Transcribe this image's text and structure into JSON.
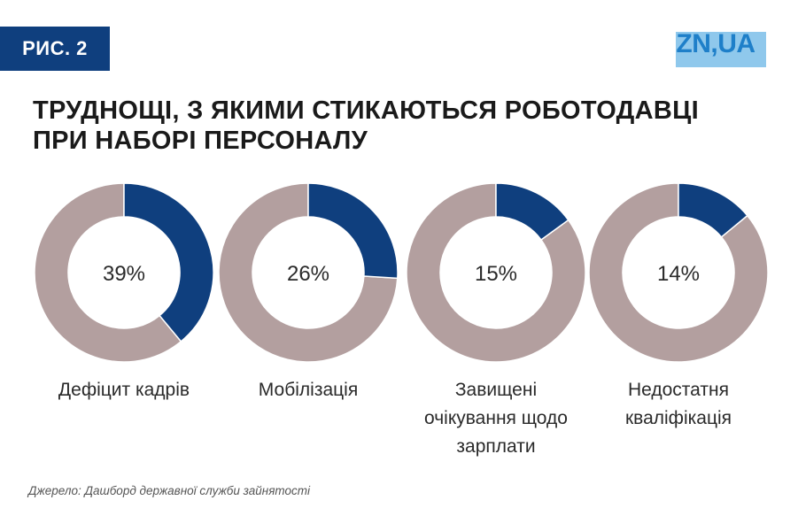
{
  "header": {
    "figure_label": "РИС. 2",
    "logo_text": "ZN,UA"
  },
  "chart_data": {
    "type": "pie",
    "variant": "donut",
    "title_lines": [
      "ТРУДНОЩІ, З ЯКИМИ СТИКАЮТЬСЯ РОБОТОДАВЦІ",
      "ПРИ НАБОРІ ПЕРСОНАЛУ"
    ],
    "items": [
      {
        "label_lines": [
          "Дефіцит кадрів"
        ],
        "value": 39,
        "value_label": "39%"
      },
      {
        "label_lines": [
          "Мобілізація"
        ],
        "value": 26,
        "value_label": "26%"
      },
      {
        "label_lines": [
          "Завищені",
          "очікування щодо",
          "зарплати"
        ],
        "value": 15,
        "value_label": "15%"
      },
      {
        "label_lines": [
          "Недостатня",
          "кваліфікація"
        ],
        "value": 14,
        "value_label": "14%"
      }
    ],
    "colors": {
      "value": "#0f3f7e",
      "remainder": "#b39f9f"
    }
  },
  "source": "Джерело: Дашборд державної служби зайнятості"
}
